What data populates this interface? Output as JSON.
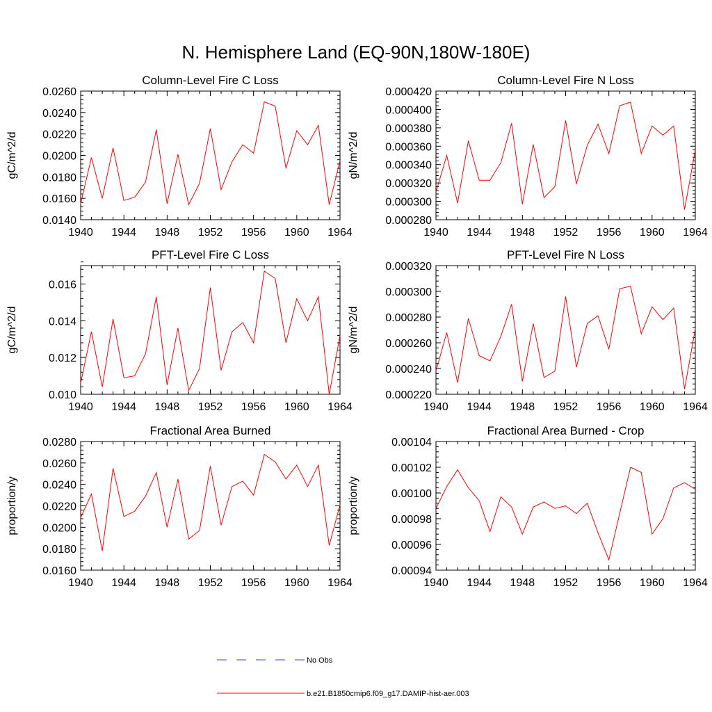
{
  "figure_title": "N. Hemisphere Land (EQ-90N,180W-180E)",
  "legend": {
    "obs_label": "No Obs",
    "obs_color": "#3344cc",
    "model_label": "b.e21.B1850cmip6.f09_g17.DAMIP-hist-aer.003",
    "model_color": "#ff0000"
  },
  "chart_data": [
    {
      "type": "line",
      "title": "Column-Level Fire C Loss",
      "ylabel": "gC/m^2/d",
      "xlim": [
        1940,
        1964
      ],
      "ylim": [
        0.014,
        0.026
      ],
      "xticks": [
        "1940",
        "1944",
        "1948",
        "1952",
        "1956",
        "1960",
        "1964"
      ],
      "yticks": [
        "0.0140",
        "0.0160",
        "0.0180",
        "0.0200",
        "0.0220",
        "0.0240",
        "0.0260"
      ],
      "x": [
        1940,
        1941,
        1942,
        1943,
        1944,
        1945,
        1946,
        1947,
        1948,
        1949,
        1950,
        1951,
        1952,
        1953,
        1954,
        1955,
        1956,
        1957,
        1958,
        1959,
        1960,
        1961,
        1962,
        1963,
        1964
      ],
      "series": [
        {
          "name": "b.e21.B1850cmip6.f09_g17.DAMIP-hist-aer.003",
          "values": [
            0.0155,
            0.0198,
            0.016,
            0.0207,
            0.0158,
            0.0161,
            0.0175,
            0.0224,
            0.0155,
            0.0201,
            0.0154,
            0.0174,
            0.0225,
            0.0168,
            0.0194,
            0.021,
            0.0202,
            0.025,
            0.0246,
            0.0188,
            0.0223,
            0.021,
            0.0228,
            0.0154,
            0.0195
          ]
        }
      ]
    },
    {
      "type": "line",
      "title": "Column-Level Fire N Loss",
      "ylabel": "gN/m^2/d",
      "xlim": [
        1940,
        1964
      ],
      "ylim": [
        0.00028,
        0.00042
      ],
      "xticks": [
        "1940",
        "1944",
        "1948",
        "1952",
        "1956",
        "1960",
        "1964"
      ],
      "yticks": [
        "0.000280",
        "0.000300",
        "0.000320",
        "0.000340",
        "0.000360",
        "0.000380",
        "0.000400",
        "0.000420"
      ],
      "x": [
        1940,
        1941,
        1942,
        1943,
        1944,
        1945,
        1946,
        1947,
        1948,
        1949,
        1950,
        1951,
        1952,
        1953,
        1954,
        1955,
        1956,
        1957,
        1958,
        1959,
        1960,
        1961,
        1962,
        1963,
        1964
      ],
      "series": [
        {
          "name": "b.e21.B1850cmip6.f09_g17.DAMIP-hist-aer.003",
          "values": [
            0.00031,
            0.00035,
            0.000298,
            0.000366,
            0.000323,
            0.000323,
            0.000342,
            0.000385,
            0.000297,
            0.000362,
            0.000304,
            0.000316,
            0.000388,
            0.000319,
            0.000361,
            0.000384,
            0.000352,
            0.000404,
            0.000408,
            0.000352,
            0.000382,
            0.000372,
            0.000382,
            0.000291,
            0.000356
          ]
        }
      ]
    },
    {
      "type": "line",
      "title": "PFT-Level Fire C Loss",
      "ylabel": "gC/m^2/d",
      "xlim": [
        1940,
        1964
      ],
      "ylim": [
        0.01,
        0.017
      ],
      "xticks": [
        "1940",
        "1944",
        "1948",
        "1952",
        "1956",
        "1960",
        "1964"
      ],
      "yticks": [
        "0.010",
        "0.012",
        "0.014",
        "0.016"
      ],
      "x": [
        1940,
        1941,
        1942,
        1943,
        1944,
        1945,
        1946,
        1947,
        1948,
        1949,
        1950,
        1951,
        1952,
        1953,
        1954,
        1955,
        1956,
        1957,
        1958,
        1959,
        1960,
        1961,
        1962,
        1963,
        1964
      ],
      "series": [
        {
          "name": "b.e21.B1850cmip6.f09_g17.DAMIP-hist-aer.003",
          "values": [
            0.0106,
            0.0134,
            0.0104,
            0.0141,
            0.0109,
            0.011,
            0.0122,
            0.0153,
            0.0105,
            0.0136,
            0.0102,
            0.0114,
            0.0158,
            0.0113,
            0.0134,
            0.0139,
            0.0128,
            0.0167,
            0.0163,
            0.0128,
            0.0152,
            0.014,
            0.0153,
            0.01,
            0.0132
          ]
        }
      ]
    },
    {
      "type": "line",
      "title": "PFT-Level Fire N Loss",
      "ylabel": "gN/m^2/d",
      "xlim": [
        1940,
        1964
      ],
      "ylim": [
        0.00022,
        0.00032
      ],
      "xticks": [
        "1940",
        "1944",
        "1948",
        "1952",
        "1956",
        "1960",
        "1964"
      ],
      "yticks": [
        "0.000220",
        "0.000240",
        "0.000260",
        "0.000280",
        "0.000300",
        "0.000320"
      ],
      "x": [
        1940,
        1941,
        1942,
        1943,
        1944,
        1945,
        1946,
        1947,
        1948,
        1949,
        1950,
        1951,
        1952,
        1953,
        1954,
        1955,
        1956,
        1957,
        1958,
        1959,
        1960,
        1961,
        1962,
        1963,
        1964
      ],
      "series": [
        {
          "name": "b.e21.B1850cmip6.f09_g17.DAMIP-hist-aer.003",
          "values": [
            0.000238,
            0.000268,
            0.000229,
            0.000279,
            0.00025,
            0.000246,
            0.000265,
            0.00029,
            0.00023,
            0.000275,
            0.000233,
            0.000238,
            0.000296,
            0.000241,
            0.000275,
            0.000281,
            0.000255,
            0.000302,
            0.000304,
            0.000267,
            0.000288,
            0.000278,
            0.000287,
            0.000224,
            0.000271
          ]
        }
      ]
    },
    {
      "type": "line",
      "title": "Fractional Area Burned",
      "ylabel": "proportion/y",
      "xlim": [
        1940,
        1964
      ],
      "ylim": [
        0.016,
        0.028
      ],
      "xticks": [
        "1940",
        "1944",
        "1948",
        "1952",
        "1956",
        "1960",
        "1964"
      ],
      "yticks": [
        "0.0160",
        "0.0180",
        "0.0200",
        "0.0220",
        "0.0240",
        "0.0260",
        "0.0280"
      ],
      "x": [
        1940,
        1941,
        1942,
        1943,
        1944,
        1945,
        1946,
        1947,
        1948,
        1949,
        1950,
        1951,
        1952,
        1953,
        1954,
        1955,
        1956,
        1957,
        1958,
        1959,
        1960,
        1961,
        1962,
        1963,
        1964
      ],
      "series": [
        {
          "name": "b.e21.B1850cmip6.f09_g17.DAMIP-hist-aer.003",
          "values": [
            0.0209,
            0.0231,
            0.0178,
            0.0255,
            0.021,
            0.0215,
            0.0229,
            0.0251,
            0.02,
            0.0245,
            0.0189,
            0.0197,
            0.0257,
            0.0202,
            0.0238,
            0.0243,
            0.023,
            0.0268,
            0.0261,
            0.0245,
            0.0258,
            0.0238,
            0.0258,
            0.0183,
            0.0221
          ]
        }
      ]
    },
    {
      "type": "line",
      "title": "Fractional Area Burned - Crop",
      "ylabel": "proportion/y",
      "xlim": [
        1940,
        1964
      ],
      "ylim": [
        0.00094,
        0.00104
      ],
      "xticks": [
        "1940",
        "1944",
        "1948",
        "1952",
        "1956",
        "1960",
        "1964"
      ],
      "yticks": [
        "0.00094",
        "0.00096",
        "0.00098",
        "0.00100",
        "0.00102",
        "0.00104"
      ],
      "x": [
        1940,
        1941,
        1942,
        1943,
        1944,
        1945,
        1946,
        1947,
        1948,
        1949,
        1950,
        1951,
        1952,
        1953,
        1954,
        1955,
        1956,
        1957,
        1958,
        1959,
        1960,
        1961,
        1962,
        1963,
        1964
      ],
      "series": [
        {
          "name": "b.e21.B1850cmip6.f09_g17.DAMIP-hist-aer.003",
          "values": [
            0.000988,
            0.001005,
            0.001018,
            0.001004,
            0.000994,
            0.00097,
            0.000997,
            0.000989,
            0.000968,
            0.000989,
            0.000993,
            0.000988,
            0.00099,
            0.000984,
            0.000992,
            0.000969,
            0.000948,
            0.000984,
            0.00102,
            0.001016,
            0.000968,
            0.00098,
            0.001004,
            0.001008,
            0.001003
          ]
        }
      ]
    }
  ]
}
